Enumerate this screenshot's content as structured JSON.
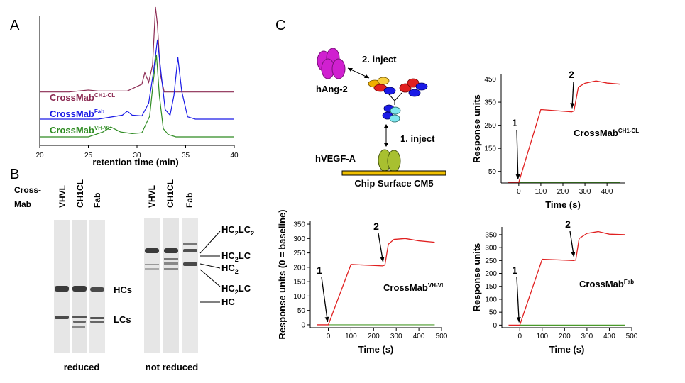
{
  "panel_letters": {
    "a": "A",
    "b": "B",
    "c": "C"
  },
  "colors": {
    "purple": "#8b2a52",
    "blue": "#1a1ae6",
    "green": "#2e8b22",
    "red": "#e02020",
    "sensor_green": "#4a9a2a",
    "mag": "#d020d0",
    "chip": "#f0c000",
    "vegf": "#a8c030"
  },
  "panel_a": {
    "labels": {
      "ch1cl_base": "CrossMab",
      "ch1cl_sup": "CH1-CL",
      "fab_base": "CrossMab",
      "fab_sup": "Fab",
      "vhvl_base": "CrossMab",
      "vhvl_sup": "VH-VL"
    }
  },
  "panel_b": {
    "cross_label": "Cross-",
    "mab_label": "Mab",
    "lanes_reduced": [
      "VHVL",
      "CH1CL",
      "Fab"
    ],
    "lanes_nonreduced": [
      "VHVL",
      "CH1CL",
      "Fab"
    ],
    "band_labels": {
      "hcs": "HCs",
      "lcs": "LCs"
    },
    "nr_labels": {
      "hc2lc2_base": "HC",
      "hc2lc2_s1": "2",
      "hc2lc2_mid": "LC",
      "hc2lc2_s2": "2",
      "hc2lc_a_base": "HC",
      "hc2lc_a_s1": "2",
      "hc2lc_a_mid": "LC",
      "hc2_base": "HC",
      "hc2_s1": "2",
      "hc2lc_b_base": "HC",
      "hc2lc_b_s1": "2",
      "hc2lc_b_mid": "LC",
      "hc": "HC"
    },
    "captions": {
      "reduced": "reduced",
      "not_reduced": "not reduced"
    }
  },
  "panel_c": {
    "schematic": {
      "step2": "2. inject",
      "step1": "1. inject",
      "hang2": "hAng-2",
      "hvegfa": "hVEGF-A",
      "chip": "Chip Surface CM5"
    }
  },
  "chart_data": [
    {
      "type": "line",
      "title": "",
      "xlabel": "retention time (min)",
      "ylabel": "",
      "xlim": [
        20,
        40
      ],
      "x_ticks": [
        "20",
        "25",
        "30",
        "35",
        "40"
      ],
      "series": [
        {
          "name": "CrossMab CH1-CL",
          "x": [
            20,
            23,
            25,
            26,
            29,
            30.5,
            30.8,
            31.2,
            31.6,
            31.9,
            32.1,
            32.4,
            32.8,
            33.4,
            34,
            36,
            40
          ],
          "values": [
            0.12,
            0.12,
            0.14,
            0.13,
            0.13,
            0.2,
            0.32,
            0.22,
            0.4,
            1.0,
            0.82,
            0.3,
            0.12,
            0.12,
            0.12,
            0.12,
            0.12
          ]
        },
        {
          "name": "CrossMab Fab",
          "x": [
            20,
            26,
            28.5,
            29.0,
            29.5,
            30.5,
            31.2,
            31.7,
            32.1,
            32.5,
            32.9,
            33.4,
            33.8,
            34.2,
            34.6,
            35.2,
            36,
            40
          ],
          "values": [
            0.0,
            0.0,
            0.05,
            0.1,
            0.05,
            0.04,
            0.2,
            0.6,
            1.0,
            0.55,
            0.12,
            0.05,
            0.3,
            0.78,
            0.35,
            0.03,
            0.0,
            0.0
          ]
        },
        {
          "name": "CrossMab VH-VL",
          "x": [
            20,
            25,
            26.5,
            27.3,
            28.3,
            29.5,
            30.5,
            31.3,
            31.7,
            32.0,
            32.3,
            32.7,
            33.2,
            34,
            35,
            40
          ],
          "values": [
            0.0,
            0.0,
            0.06,
            0.12,
            0.06,
            0.04,
            0.05,
            0.25,
            0.7,
            1.0,
            0.5,
            0.1,
            0.03,
            0.0,
            0.0,
            0.0
          ]
        }
      ]
    },
    {
      "type": "line",
      "title": "CrossMab CH1-CL",
      "title_base": "CrossMab",
      "title_sup": "CH1-CL",
      "xlabel": "Time (s)",
      "ylabel": "Response units",
      "xlim": [
        -80,
        480
      ],
      "ylim": [
        0,
        470
      ],
      "x_ticks": [
        "0",
        "100",
        "200",
        "300",
        "400"
      ],
      "y_ticks": [
        "50",
        "150",
        "250",
        "350",
        "450"
      ],
      "markers": [
        "1",
        "2"
      ],
      "series": [
        {
          "name": "binding",
          "x": [
            -50,
            0,
            100,
            240,
            250,
            270,
            300,
            350,
            400,
            460
          ],
          "values": [
            3,
            3,
            318,
            308,
            312,
            415,
            432,
            442,
            433,
            428
          ]
        },
        {
          "name": "control",
          "x": [
            0,
            460
          ],
          "values": [
            3,
            3
          ]
        }
      ]
    },
    {
      "type": "line",
      "title": "CrossMab VH-VL",
      "title_base": "CrossMab",
      "title_sup": "VH-VL",
      "xlabel": "Time (s)",
      "ylabel": "Response units (0 = baseline)",
      "xlim": [
        -80,
        500
      ],
      "ylim": [
        -10,
        360
      ],
      "x_ticks": [
        "0",
        "100",
        "200",
        "300",
        "400",
        "500"
      ],
      "y_ticks": [
        "0",
        "50",
        "100",
        "150",
        "200",
        "250",
        "300",
        "350"
      ],
      "markers": [
        "1",
        "2"
      ],
      "series": [
        {
          "name": "binding",
          "x": [
            -50,
            0,
            100,
            240,
            250,
            265,
            290,
            340,
            400,
            470
          ],
          "values": [
            0,
            0,
            210,
            205,
            208,
            280,
            297,
            300,
            292,
            287
          ]
        },
        {
          "name": "control",
          "x": [
            0,
            470
          ],
          "values": [
            0,
            0
          ]
        }
      ]
    },
    {
      "type": "line",
      "title": "CrossMab Fab",
      "title_base": "CrossMab",
      "title_sup": "Fab",
      "xlabel": "Time (s)",
      "ylabel": "Response units",
      "xlim": [
        -80,
        500
      ],
      "ylim": [
        -10,
        380
      ],
      "x_ticks": [
        "0",
        "100",
        "200",
        "300",
        "400",
        "500"
      ],
      "y_ticks": [
        "0",
        "50",
        "100",
        "150",
        "200",
        "250",
        "300",
        "350"
      ],
      "markers": [
        "1",
        "2"
      ],
      "series": [
        {
          "name": "binding",
          "x": [
            -50,
            0,
            100,
            240,
            250,
            265,
            300,
            350,
            400,
            470
          ],
          "values": [
            0,
            0,
            255,
            250,
            252,
            335,
            355,
            362,
            352,
            350
          ]
        },
        {
          "name": "control",
          "x": [
            0,
            470
          ],
          "values": [
            0,
            0
          ]
        }
      ]
    }
  ]
}
